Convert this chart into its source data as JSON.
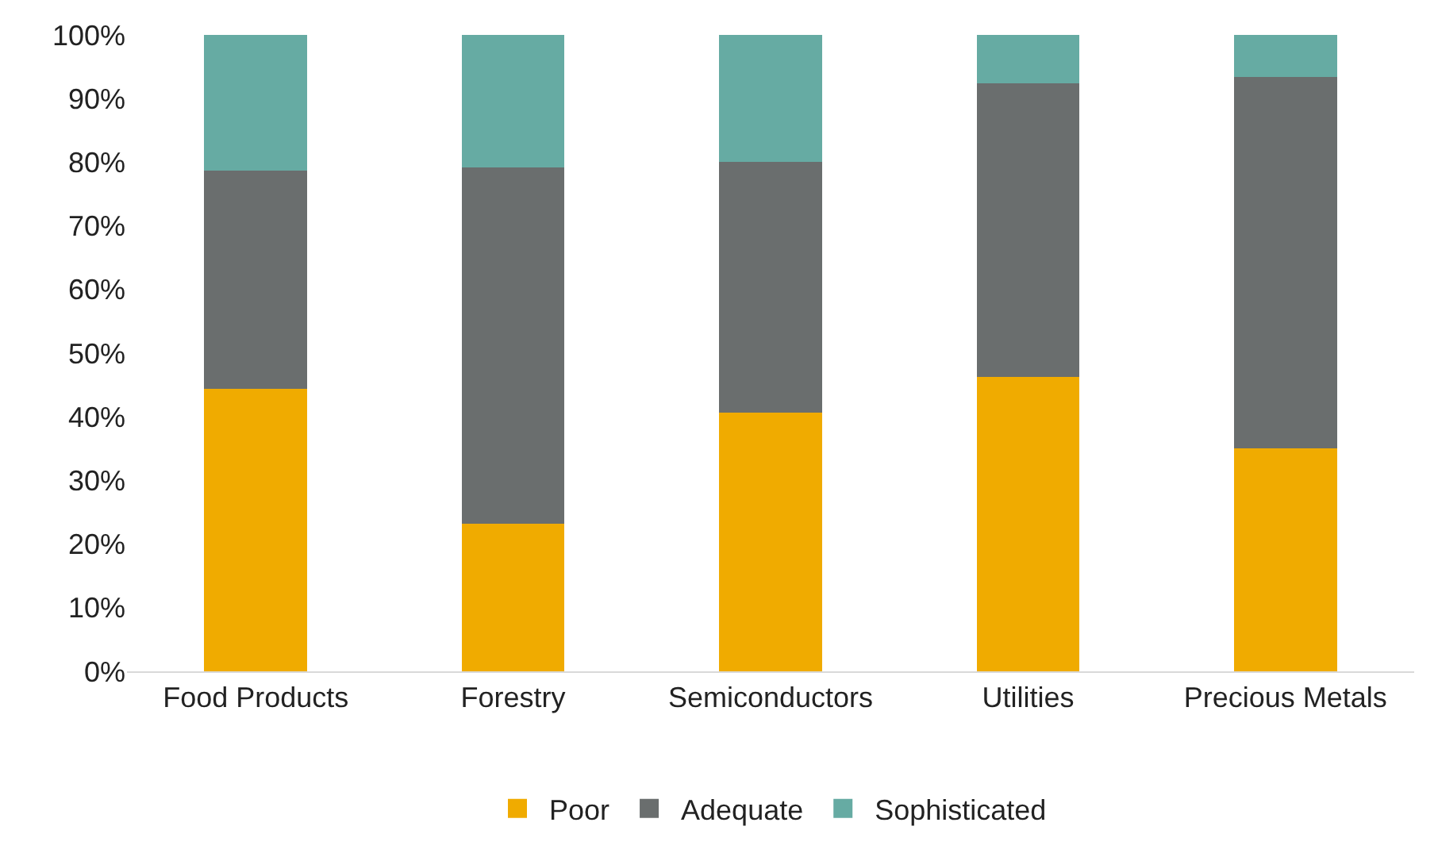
{
  "chart_data": {
    "type": "bar",
    "stacked": true,
    "categories": [
      "Food Products",
      "Forestry",
      "Semiconductors",
      "Utilities",
      "Precious Metals"
    ],
    "series": [
      {
        "name": "Poor",
        "color": "#f0ab00",
        "values": [
          44.4,
          23.2,
          40.7,
          46.3,
          35.0
        ]
      },
      {
        "name": "Adequate",
        "color": "#6a6e6e",
        "values": [
          34.3,
          56.0,
          39.4,
          46.1,
          58.4
        ]
      },
      {
        "name": "Sophisticated",
        "color": "#66aba3",
        "values": [
          21.3,
          20.8,
          19.9,
          7.6,
          6.6
        ]
      }
    ],
    "ylim": [
      0,
      100
    ],
    "yticks": [
      {
        "value": 0,
        "label": "0%"
      },
      {
        "value": 10,
        "label": "10%"
      },
      {
        "value": 20,
        "label": "20%"
      },
      {
        "value": 30,
        "label": "30%"
      },
      {
        "value": 40,
        "label": "40%"
      },
      {
        "value": 50,
        "label": "50%"
      },
      {
        "value": 60,
        "label": "60%"
      },
      {
        "value": 70,
        "label": "70%"
      },
      {
        "value": 80,
        "label": "80%"
      },
      {
        "value": 90,
        "label": "90%"
      },
      {
        "value": 100,
        "label": "100%"
      }
    ],
    "grid": false,
    "legend": "bottom"
  }
}
